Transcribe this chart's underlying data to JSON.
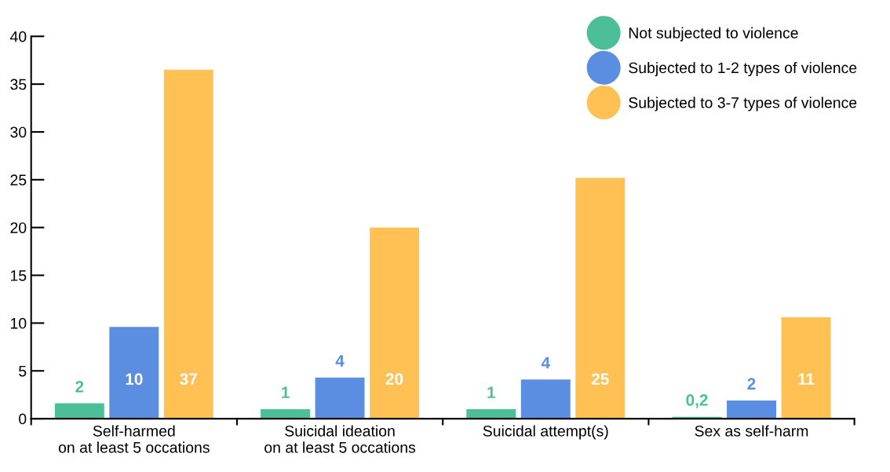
{
  "chart_data": {
    "type": "bar",
    "categories": [
      "Self-harmed\non at least 5 occations",
      "Suicidal ideation\non at least 5 occations",
      "Suicidal attempt(s)",
      "Sex as self-harm"
    ],
    "series": [
      {
        "name": "Not subjected to violence",
        "color": "#4dbf98",
        "values": [
          1.6,
          1.0,
          1.0,
          0.2
        ],
        "value_labels": [
          "2",
          "1",
          "1",
          "0,2"
        ]
      },
      {
        "name": "Subjected to 1-2 types of violence",
        "color": "#5b8ee0",
        "values": [
          9.6,
          4.3,
          4.1,
          1.9
        ],
        "value_labels": [
          "10",
          "4",
          "4",
          "2"
        ]
      },
      {
        "name": "Subjected to 3-7 types of violence",
        "color": "#ffc154",
        "values": [
          36.5,
          20.0,
          25.2,
          10.6
        ],
        "value_labels": [
          "37",
          "20",
          "25",
          "11"
        ]
      }
    ],
    "ylim": [
      0,
      40
    ],
    "yticks": [
      0,
      5,
      10,
      15,
      20,
      25,
      30,
      35,
      40
    ],
    "grid": false,
    "legend": "top right"
  }
}
